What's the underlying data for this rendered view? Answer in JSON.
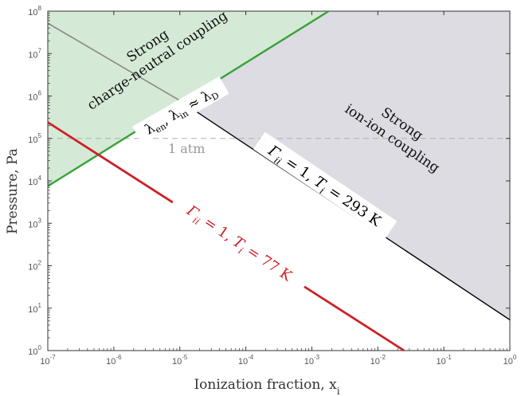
{
  "chart_data": {
    "type": "line",
    "xlabel": "Ionization fraction, x",
    "xlabel_sub": "i",
    "ylabel": "Pressure, Pa",
    "x_scale": "log",
    "y_scale": "log",
    "xlim": [
      1e-07,
      1
    ],
    "ylim": [
      1,
      100000000.0
    ],
    "grid": false,
    "x_ticks": [
      {
        "base": "10",
        "exp": "-7",
        "value": 1e-07
      },
      {
        "base": "10",
        "exp": "-6",
        "value": 1e-06
      },
      {
        "base": "10",
        "exp": "-5",
        "value": 1e-05
      },
      {
        "base": "10",
        "exp": "-4",
        "value": 0.0001
      },
      {
        "base": "10",
        "exp": "-3",
        "value": 0.001
      },
      {
        "base": "10",
        "exp": "-2",
        "value": 0.01
      },
      {
        "base": "10",
        "exp": "-1",
        "value": 0.1
      },
      {
        "base": "10",
        "exp": "0",
        "value": 1
      }
    ],
    "y_ticks": [
      {
        "base": "10",
        "exp": "0",
        "value": 1
      },
      {
        "base": "10",
        "exp": "1",
        "value": 10
      },
      {
        "base": "10",
        "exp": "2",
        "value": 100
      },
      {
        "base": "10",
        "exp": "3",
        "value": 1000
      },
      {
        "base": "10",
        "exp": "4",
        "value": 10000
      },
      {
        "base": "10",
        "exp": "5",
        "value": 100000
      },
      {
        "base": "10",
        "exp": "6",
        "value": 1000000
      },
      {
        "base": "10",
        "exp": "7",
        "value": 10000000
      },
      {
        "base": "10",
        "exp": "8",
        "value": 100000000
      }
    ],
    "series": [
      {
        "name": "Γii = 1, Ti = 293 K",
        "color": "#000000",
        "points": [
          [
            1e-05,
            780000.0
          ],
          [
            1,
            5.3
          ]
        ]
      },
      {
        "name": "Γii = 1, Ti = 77 K",
        "color": "#cc2127",
        "points": [
          [
            1e-07,
            240000.0
          ],
          [
            0.025,
            1
          ]
        ]
      },
      {
        "name": "λen, λin ≈ λD",
        "color": "#3aa23a",
        "points": [
          [
            1e-07,
            7500.0
          ],
          [
            0.0018,
            100000000.0
          ]
        ]
      },
      {
        "name": "λen, λin ≈ λD (gray continuation)",
        "color": "#8a8a8a",
        "points": [
          [
            1e-07,
            52000000.0
          ],
          [
            1e-05,
            780000.0
          ]
        ]
      },
      {
        "name": "1 atm",
        "color": "#b0b0b0",
        "dashed": true,
        "points": [
          [
            1e-07,
            100000.0
          ],
          [
            1,
            100000.0
          ]
        ]
      }
    ],
    "regions": [
      {
        "name": "Strong charge-neutral coupling",
        "color": "#cfe8d2"
      },
      {
        "name": "Strong ion-ion coupling",
        "color": "#dcdce2"
      }
    ],
    "annotations": {
      "green_region": {
        "line1": "Strong",
        "line2": "charge-neutral coupling"
      },
      "gray_region": {
        "line1": "Strong",
        "line2": "ion-ion coupling"
      },
      "atm": "1 atm",
      "lambda": {
        "l1": "λ",
        "s1": "en",
        "sep": ", ",
        "l2": "λ",
        "s2": "in",
        "approx": " ≈ ",
        "l3": "λ",
        "s3": "D"
      },
      "gamma293": {
        "g": "Γ",
        "s": "ii",
        "eq": " = 1, ",
        "t": "T",
        "ts": "i",
        "val": " = 293 K"
      },
      "gamma77": {
        "g": "Γ",
        "s": "ii",
        "eq": " = 1, ",
        "t": "T",
        "ts": "i",
        "val": " = 77 K"
      }
    }
  }
}
